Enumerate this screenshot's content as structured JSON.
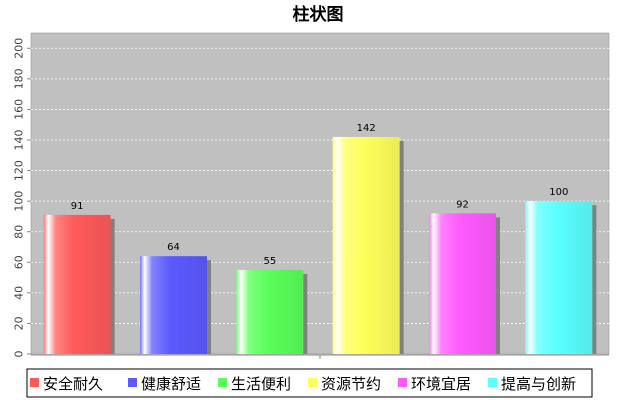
{
  "chart_data": {
    "type": "bar",
    "title": "柱状图",
    "xlabel": "",
    "ylabel": "",
    "categories": [
      "安全耐久",
      "健康舒适",
      "生活便利",
      "资源节约",
      "环境宜居",
      "提高与创新"
    ],
    "values": [
      91,
      64,
      55,
      142,
      92,
      100
    ],
    "colors": [
      "#ff5a5a",
      "#5a5aff",
      "#5aff5a",
      "#ffff5a",
      "#ff5aff",
      "#5affff"
    ],
    "ylim": [
      0,
      210
    ],
    "yticks": [
      0,
      20,
      40,
      60,
      80,
      100,
      120,
      140,
      160,
      180,
      200
    ],
    "grid": true,
    "legend_position": "bottom",
    "plot_background": "#c0c0c0"
  }
}
